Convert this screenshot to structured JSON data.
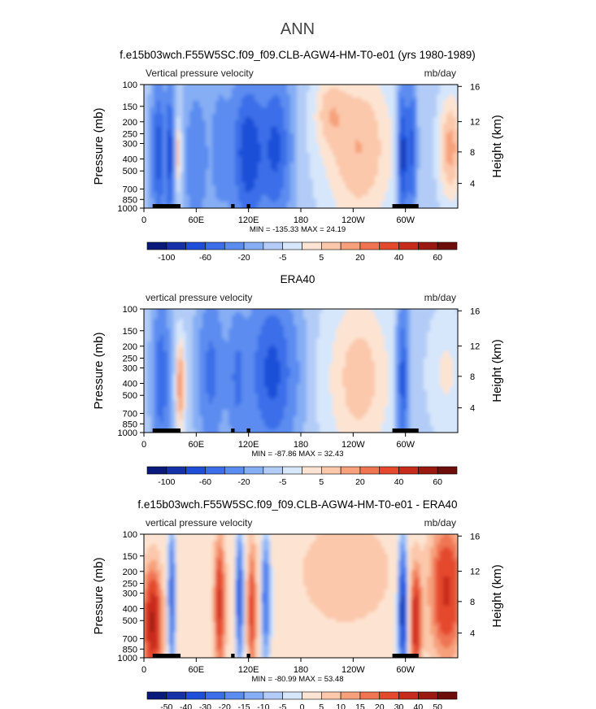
{
  "page_title": "ANN",
  "chart_data": [
    {
      "type": "heatmap",
      "title": "f.e15b03wch.F55W5SC.f09_f09.CLB-AGW4-HM-T0-e01 (yrs 1980-1989)",
      "left_string": "Vertical pressure velocity",
      "right_string": "mb/day",
      "xlabel": "",
      "ylabel": "Pressure (mb)",
      "y2label": "Height (km)",
      "x_ticks": [
        "0",
        "60E",
        "120E",
        "180",
        "120W",
        "60W"
      ],
      "x_tick_values": [
        0,
        60,
        120,
        180,
        240,
        300
      ],
      "xlim": [
        0,
        360
      ],
      "y_ticks": [
        "100",
        "150",
        "200",
        "250",
        "300",
        "400",
        "500",
        "700",
        "850",
        "1000"
      ],
      "y_tick_values": [
        100,
        150,
        200,
        250,
        300,
        400,
        500,
        700,
        850,
        1000
      ],
      "ylim": [
        1000,
        100
      ],
      "y_scale": "log",
      "y2_ticks": [
        "4",
        "8",
        "12",
        "16"
      ],
      "min_max_text": "MIN = -135.33   MAX =  24.19",
      "min": -135.33,
      "max": 24.19,
      "colorbar_labels": [
        "-100",
        "-60",
        "-20",
        "-5",
        "5",
        "20",
        "40",
        "60"
      ]
    },
    {
      "type": "heatmap",
      "title": "ERA40",
      "left_string": "vertical pressure velocity",
      "right_string": "mb/day",
      "xlabel": "",
      "ylabel": "Pressure (mb)",
      "y2label": "Height (km)",
      "x_ticks": [
        "0",
        "60E",
        "120E",
        "180",
        "120W",
        "60W"
      ],
      "x_tick_values": [
        0,
        60,
        120,
        180,
        240,
        300
      ],
      "xlim": [
        0,
        360
      ],
      "y_ticks": [
        "100",
        "150",
        "200",
        "250",
        "300",
        "400",
        "500",
        "700",
        "850",
        "1000"
      ],
      "y_tick_values": [
        100,
        150,
        200,
        250,
        300,
        400,
        500,
        700,
        850,
        1000
      ],
      "ylim": [
        1000,
        100
      ],
      "y_scale": "log",
      "y2_ticks": [
        "4",
        "8",
        "12",
        "16"
      ],
      "min_max_text": "MIN = -87.86   MAX =  32.43",
      "min": -87.86,
      "max": 32.43,
      "colorbar_labels": [
        "-100",
        "-60",
        "-20",
        "-5",
        "5",
        "20",
        "40",
        "60"
      ]
    },
    {
      "type": "heatmap",
      "title": "f.e15b03wch.F55W5SC.f09_f09.CLB-AGW4-HM-T0-e01 - ERA40",
      "left_string": "vertical pressure velocity",
      "right_string": "mb/day",
      "xlabel": "",
      "ylabel": "Pressure (mb)",
      "y2label": "Height (km)",
      "x_ticks": [
        "0",
        "60E",
        "120E",
        "180",
        "120W",
        "60W"
      ],
      "x_tick_values": [
        0,
        60,
        120,
        180,
        240,
        300
      ],
      "xlim": [
        0,
        360
      ],
      "y_ticks": [
        "100",
        "150",
        "200",
        "250",
        "300",
        "400",
        "500",
        "700",
        "850",
        "1000"
      ],
      "y_tick_values": [
        100,
        150,
        200,
        250,
        300,
        400,
        500,
        700,
        850,
        1000
      ],
      "ylim": [
        1000,
        100
      ],
      "y_scale": "log",
      "y2_ticks": [
        "4",
        "8",
        "12",
        "16"
      ],
      "min_max_text": "MIN = -80.99   MAX =  53.48",
      "min": -80.99,
      "max": 53.48,
      "colorbar_labels": [
        "-50",
        "-40",
        "-30",
        "-20",
        "-15",
        "-10",
        "-5",
        "0",
        "5",
        "10",
        "15",
        "20",
        "30",
        "40",
        "50"
      ]
    }
  ],
  "colors": {
    "scale_ab": [
      "#0a1a7a",
      "#1532a8",
      "#1f4fd8",
      "#3b6ee8",
      "#5b8cf0",
      "#86aef4",
      "#b2ccf7",
      "#d6e6fb",
      "#fde4d2",
      "#fbc8ab",
      "#f6a07c",
      "#ef7452",
      "#e4492e",
      "#c72b1c",
      "#9a1a12",
      "#6e0e0a"
    ],
    "scale_diff": [
      "#0a1a7a",
      "#1532a8",
      "#1f4fd8",
      "#3b6ee8",
      "#5b8cf0",
      "#86aef4",
      "#b2ccf7",
      "#d6e6fb",
      "#fde4d2",
      "#fbc8ab",
      "#f6a07c",
      "#ef7452",
      "#e4492e",
      "#c72b1c",
      "#9a1a12",
      "#6e0e0a"
    ],
    "topography": "#000000"
  }
}
